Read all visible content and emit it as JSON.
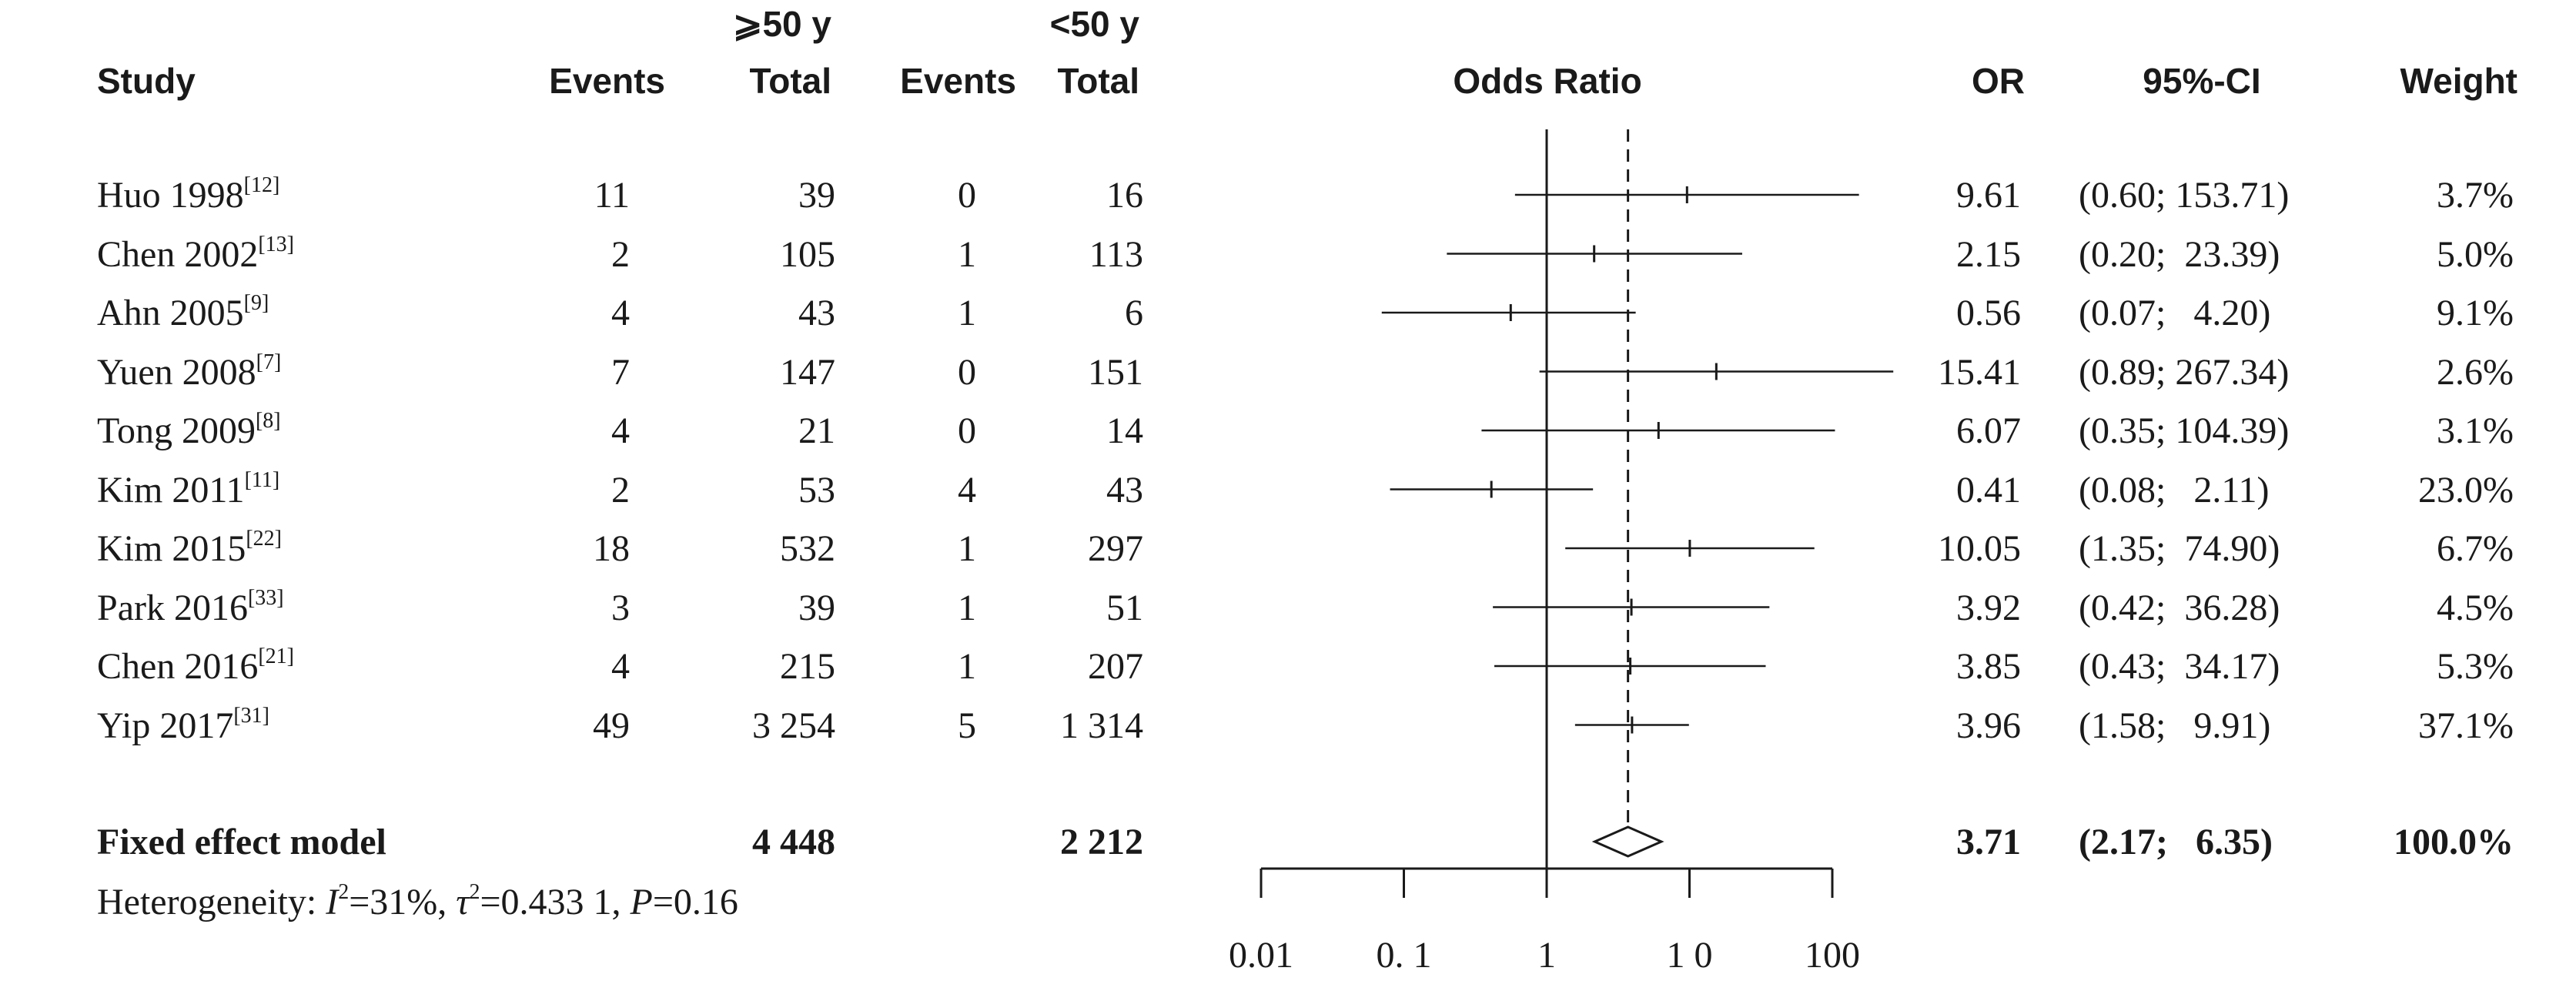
{
  "headers": {
    "study": "Study",
    "group_a": "⩾50 y",
    "group_b": "<50 y",
    "events_a": "Events",
    "total_a": "Total",
    "events_b": "Events",
    "total_b": "Total",
    "odds_ratio": "Odds Ratio",
    "or": "OR",
    "ci": "95%-CI",
    "weight": "Weight"
  },
  "rows": [
    {
      "study": "Huo 1998",
      "ref": "[12]",
      "events_a": "11",
      "total_a": "39",
      "events_b": "0",
      "total_b": "16",
      "or": "9.61",
      "ci": "(0.60; 153.71)",
      "weight": "3.7%"
    },
    {
      "study": "Chen 2002",
      "ref": "[13]",
      "events_a": "2",
      "total_a": "105",
      "events_b": "1",
      "total_b": "113",
      "or": "2.15",
      "ci": "(0.20;  23.39)",
      "weight": "5.0%"
    },
    {
      "study": "Ahn 2005",
      "ref": "[9]",
      "events_a": "4",
      "total_a": "43",
      "events_b": "1",
      "total_b": "6",
      "or": "0.56",
      "ci": "(0.07;   4.20)",
      "weight": "9.1%"
    },
    {
      "study": "Yuen 2008",
      "ref": "[7]",
      "events_a": "7",
      "total_a": "147",
      "events_b": "0",
      "total_b": "151",
      "or": "15.41",
      "ci": "(0.89; 267.34)",
      "weight": "2.6%"
    },
    {
      "study": "Tong 2009",
      "ref": "[8]",
      "events_a": "4",
      "total_a": "21",
      "events_b": "0",
      "total_b": "14",
      "or": "6.07",
      "ci": "(0.35; 104.39)",
      "weight": "3.1%"
    },
    {
      "study": "Kim 2011",
      "ref": "[11]",
      "events_a": "2",
      "total_a": "53",
      "events_b": "4",
      "total_b": "43",
      "or": "0.41",
      "ci": "(0.08;   2.11)",
      "weight": "23.0%"
    },
    {
      "study": "Kim 2015",
      "ref": "[22]",
      "events_a": "18",
      "total_a": "532",
      "events_b": "1",
      "total_b": "297",
      "or": "10.05",
      "ci": "(1.35;  74.90)",
      "weight": "6.7%"
    },
    {
      "study": "Park 2016",
      "ref": "[33]",
      "events_a": "3",
      "total_a": "39",
      "events_b": "1",
      "total_b": "51",
      "or": "3.92",
      "ci": "(0.42;  36.28)",
      "weight": "4.5%"
    },
    {
      "study": "Chen 2016",
      "ref": "[21]",
      "events_a": "4",
      "total_a": "215",
      "events_b": "1",
      "total_b": "207",
      "or": "3.85",
      "ci": "(0.43;  34.17)",
      "weight": "5.3%"
    },
    {
      "study": "Yip 2017",
      "ref": "[31]",
      "events_a": "49",
      "total_a": "3 254",
      "events_b": "5",
      "total_b": "1 314",
      "or": "3.96",
      "ci": "(1.58;   9.91)",
      "weight": "37.1%"
    }
  ],
  "summary": {
    "label": "Fixed effect model",
    "total_a": "4 448",
    "total_b": "2 212",
    "or": "3.71",
    "ci": "(2.17;   6.35)",
    "weight": "100.0%"
  },
  "heterogeneity": {
    "prefix": "Heterogeneity: ",
    "i2_symbol": "I",
    "i2_value": "=31%, ",
    "tau_symbol": "τ",
    "tau_value": "=0.433 1, ",
    "p_symbol": "P",
    "p_value": "=0.16"
  },
  "chart_data": {
    "type": "forest",
    "scale": "log",
    "xlim": [
      0.01,
      100
    ],
    "xticks": [
      0.01,
      0.1,
      1,
      10,
      100
    ],
    "xtick_labels": [
      "0.01",
      "0. 1",
      "1",
      "1 0",
      "100"
    ],
    "reference_line": 1,
    "pooled_line": 3.71,
    "studies": [
      {
        "or": 9.61,
        "lower": 0.6,
        "upper": 153.71
      },
      {
        "or": 2.15,
        "lower": 0.2,
        "upper": 23.39
      },
      {
        "or": 0.56,
        "lower": 0.07,
        "upper": 4.2
      },
      {
        "or": 15.41,
        "lower": 0.89,
        "upper": 267.34
      },
      {
        "or": 6.07,
        "lower": 0.35,
        "upper": 104.39
      },
      {
        "or": 0.41,
        "lower": 0.08,
        "upper": 2.11
      },
      {
        "or": 10.05,
        "lower": 1.35,
        "upper": 74.9
      },
      {
        "or": 3.92,
        "lower": 0.42,
        "upper": 36.28
      },
      {
        "or": 3.85,
        "lower": 0.43,
        "upper": 34.17
      },
      {
        "or": 3.96,
        "lower": 1.58,
        "upper": 9.91
      }
    ],
    "pooled": {
      "or": 3.71,
      "lower": 2.17,
      "upper": 6.35
    }
  }
}
